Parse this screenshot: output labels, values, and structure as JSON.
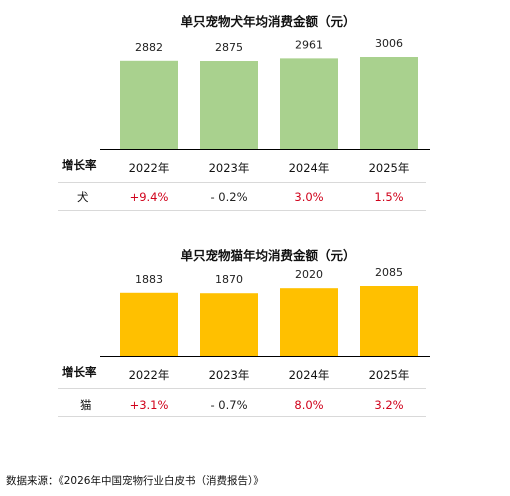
{
  "chart_data": [
    {
      "type": "bar",
      "title": "单只宠物犬年均消费金额（元）",
      "categories": [
        "2022年",
        "2023年",
        "2024年",
        "2025年"
      ],
      "values": [
        2882,
        2875,
        2961,
        3006
      ],
      "data_labels": [
        "2882",
        "2875",
        "2961",
        "3006"
      ],
      "bar_color": "#a9d18e",
      "ylim": [
        0,
        3100
      ],
      "grid": false,
      "table": {
        "header": "增长率",
        "row_label": "犬",
        "growth": [
          "+9.4%",
          "- 0.2%",
          "3.0%",
          "1.5%"
        ],
        "growth_colors": [
          "#d0021b",
          "#222222",
          "#d0021b",
          "#d0021b"
        ]
      }
    },
    {
      "type": "bar",
      "title": "单只宠物猫年均消费金额（元）",
      "categories": [
        "2022年",
        "2023年",
        "2024年",
        "2025年"
      ],
      "values": [
        1883,
        1870,
        2020,
        2085
      ],
      "data_labels": [
        "1883",
        "1870",
        "2020",
        "2085"
      ],
      "bar_color": "#ffc000",
      "ylim": [
        0,
        2180
      ],
      "grid": false,
      "table": {
        "header": "增长率",
        "row_label": "猫",
        "growth": [
          "+3.1%",
          "- 0.7%",
          "8.0%",
          "3.2%"
        ],
        "growth_colors": [
          "#d0021b",
          "#222222",
          "#d0021b",
          "#d0021b"
        ]
      }
    }
  ],
  "source": "数据来源：《2026年中国宠物行业白皮书（消费报告）》"
}
